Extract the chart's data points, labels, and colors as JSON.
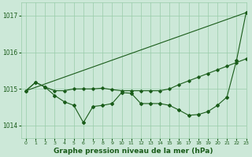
{
  "background_color": "#cce8d8",
  "grid_color": "#99ccaa",
  "line_color": "#1a5c1a",
  "xlabel": "Graphe pression niveau de la mer (hPa)",
  "xlabel_fontsize": 6.5,
  "xlim": [
    -0.5,
    23
  ],
  "ylim": [
    1013.65,
    1017.35
  ],
  "yticks": [
    1014,
    1015,
    1016,
    1017
  ],
  "xticks": [
    0,
    1,
    2,
    3,
    4,
    5,
    6,
    7,
    8,
    9,
    10,
    11,
    12,
    13,
    14,
    15,
    16,
    17,
    18,
    19,
    20,
    21,
    22,
    23
  ],
  "line1_x": [
    0,
    23
  ],
  "line1_y": [
    1014.95,
    1017.08
  ],
  "line2": [
    1014.95,
    1015.18,
    1015.05,
    1014.95,
    1014.95,
    1015.0,
    1015.0,
    1015.0,
    1015.02,
    1014.98,
    1014.95,
    1014.95,
    1014.95,
    1014.95,
    1014.95,
    1015.0,
    1015.12,
    1015.22,
    1015.32,
    1015.42,
    1015.52,
    1015.62,
    1015.72,
    1015.82
  ],
  "line3": [
    1014.95,
    1015.18,
    1015.05,
    1014.82,
    1014.65,
    1014.55,
    1014.08,
    1014.52,
    1014.55,
    1014.6,
    1014.9,
    1014.88,
    1014.6,
    1014.6,
    1014.6,
    1014.55,
    1014.42,
    1014.28,
    1014.3,
    1014.38,
    1014.55,
    1014.78,
    1015.78,
    1017.08
  ],
  "line2_marker_x": [
    0,
    1,
    2,
    3,
    4,
    5,
    10,
    14,
    15,
    23
  ],
  "xtick_fontsize": 4.5,
  "ytick_fontsize": 5.5
}
